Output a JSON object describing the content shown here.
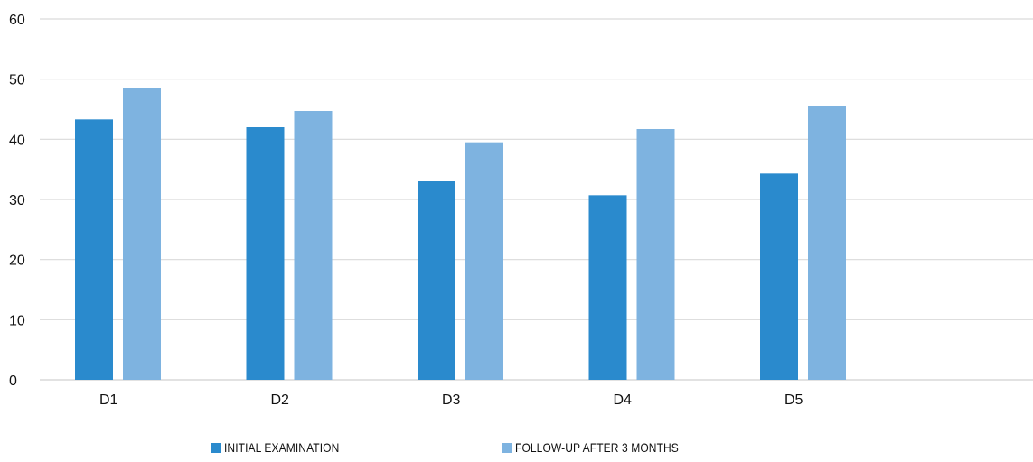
{
  "chart_data": {
    "type": "bar",
    "categories": [
      "D1",
      "D2",
      "D3",
      "D4",
      "D5"
    ],
    "series": [
      {
        "name": "INITIAL EXAMINATION",
        "color": "#2A8ACD",
        "values": [
          43.3,
          42.0,
          33.0,
          30.7,
          34.3
        ]
      },
      {
        "name": "FOLLOW-UP AFTER 3 MONTHS",
        "color": "#7EB3E0",
        "values": [
          48.6,
          44.7,
          39.5,
          41.7,
          45.6
        ]
      }
    ],
    "y_ticks": [
      "0",
      "10",
      "20",
      "30",
      "40",
      "50",
      "60"
    ],
    "ylim": [
      0,
      60
    ],
    "grid": true,
    "legend_position": "bottom"
  }
}
